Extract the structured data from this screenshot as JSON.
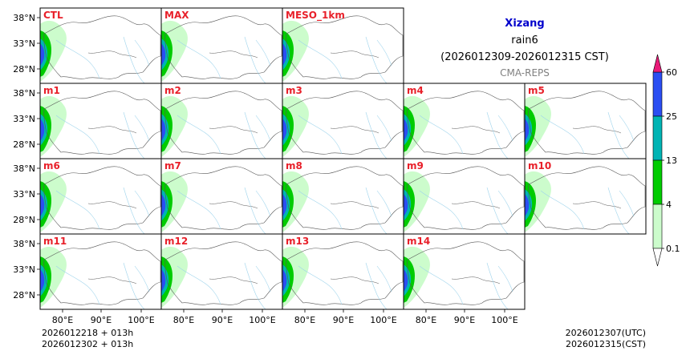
{
  "title": {
    "region": "Xizang",
    "variable": "rain6",
    "period": "(2026012309-2026012315 CST)",
    "source": "CMA-REPS"
  },
  "panels": [
    "CTL",
    "MAX",
    "MESO_1km",
    "m1",
    "m2",
    "m3",
    "m4",
    "m5",
    "m6",
    "m7",
    "m8",
    "m9",
    "m10",
    "m11",
    "m12",
    "m13",
    "m14"
  ],
  "axes": {
    "lat_ticks": [
      "38°N",
      "33°N",
      "28°N"
    ],
    "lon_ticks": [
      "80°E",
      "90°E",
      "100°E"
    ]
  },
  "colorbar": {
    "levels": [
      "0.1",
      "4",
      "13",
      "25",
      "60"
    ],
    "colors": [
      "#ccfccc",
      "#00cc00",
      "#00b4b4",
      "#2b4ef2",
      "#e81a78"
    ]
  },
  "footer": {
    "init_line1": "2026012218  +  013h",
    "init_line2": "2026012302  +  013h",
    "valid_utc": "2026012307(UTC)",
    "valid_cst": "2026012315(CST)"
  }
}
